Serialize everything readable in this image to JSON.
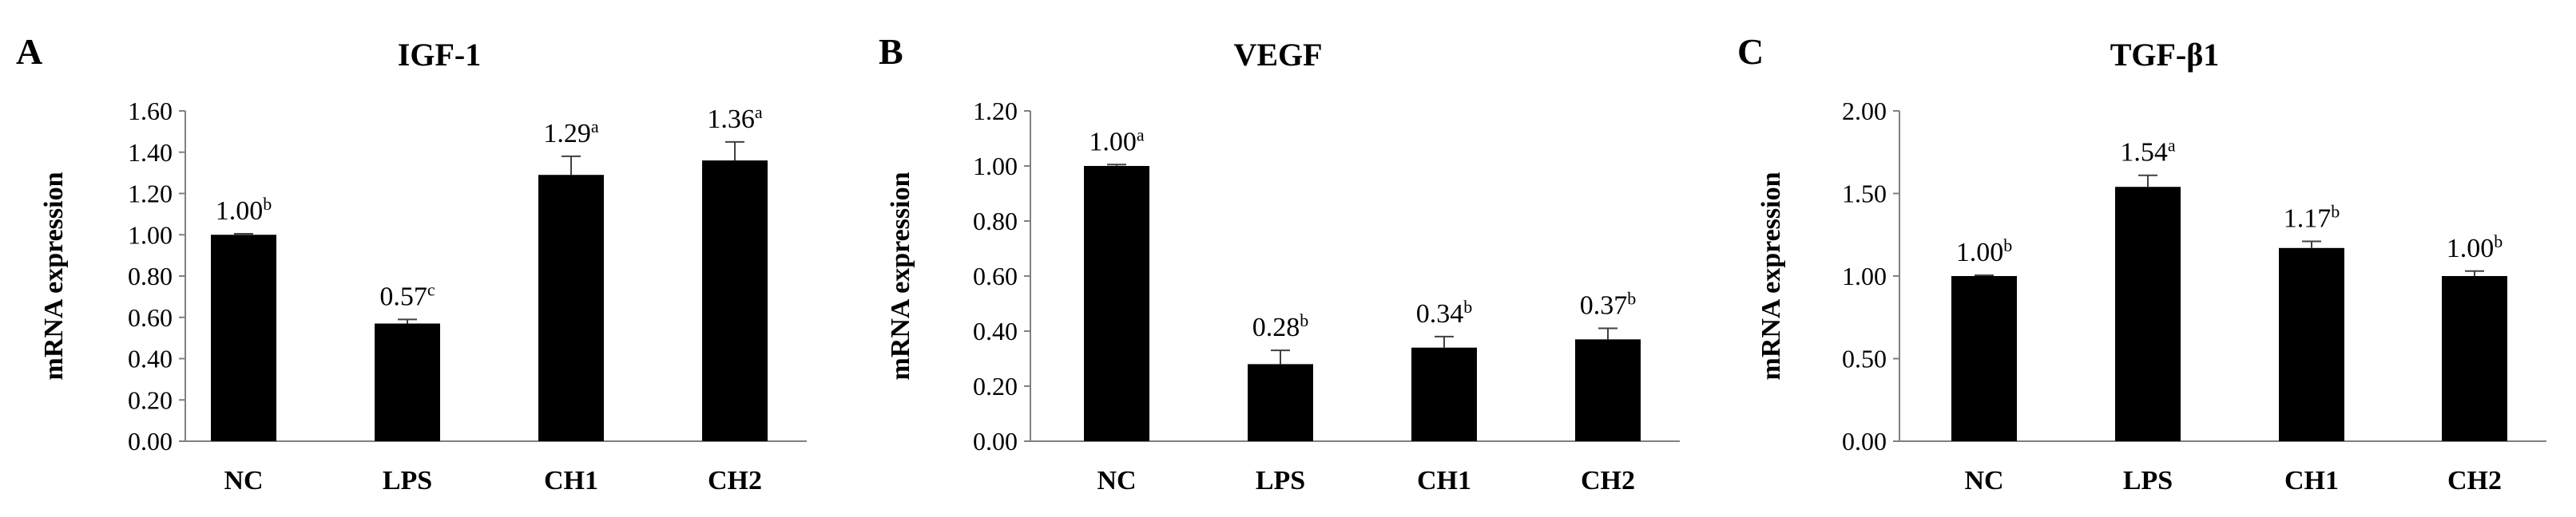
{
  "chart_data": [
    {
      "type": "bar",
      "panel": "A",
      "title": "IGF-1",
      "xlabel": "",
      "ylabel": "mRNA expression",
      "ylim": [
        0,
        1.6
      ],
      "yticks": [
        "0.00",
        "0.20",
        "0.40",
        "0.60",
        "0.80",
        "1.00",
        "1.20",
        "1.40",
        "1.60"
      ],
      "categories": [
        "NC",
        "LPS",
        "CH1",
        "CH2"
      ],
      "values": [
        1.0,
        0.57,
        1.29,
        1.36
      ],
      "errors": [
        0.005,
        0.02,
        0.09,
        0.09
      ],
      "value_labels": [
        "1.00",
        "0.57",
        "1.29",
        "1.36"
      ],
      "significance": [
        "b",
        "c",
        "a",
        "a"
      ]
    },
    {
      "type": "bar",
      "panel": "B",
      "title": "VEGF",
      "xlabel": "",
      "ylabel": "mRNA expression",
      "ylim": [
        0,
        1.2
      ],
      "yticks": [
        "0.00",
        "0.20",
        "0.40",
        "0.60",
        "0.80",
        "1.00",
        "1.20"
      ],
      "categories": [
        "NC",
        "LPS",
        "CH1",
        "CH2"
      ],
      "values": [
        1.0,
        0.28,
        0.34,
        0.37
      ],
      "errors": [
        0.005,
        0.05,
        0.04,
        0.04
      ],
      "value_labels": [
        "1.00",
        "0.28",
        "0.34",
        "0.37"
      ],
      "significance": [
        "a",
        "b",
        "b",
        "b"
      ]
    },
    {
      "type": "bar",
      "panel": "C",
      "title": "TGF-β1",
      "xlabel": "",
      "ylabel": "mRNA expression",
      "ylim": [
        0,
        2.0
      ],
      "yticks": [
        "0.00",
        "0.50",
        "1.00",
        "1.50",
        "2.00"
      ],
      "categories": [
        "NC",
        "LPS",
        "CH1",
        "CH2"
      ],
      "values": [
        1.0,
        1.54,
        1.17,
        1.0
      ],
      "errors": [
        0.005,
        0.07,
        0.04,
        0.03
      ],
      "value_labels": [
        "1.00",
        "1.54",
        "1.17",
        "1.00"
      ],
      "significance": [
        "b",
        "a",
        "b",
        "b"
      ]
    }
  ]
}
